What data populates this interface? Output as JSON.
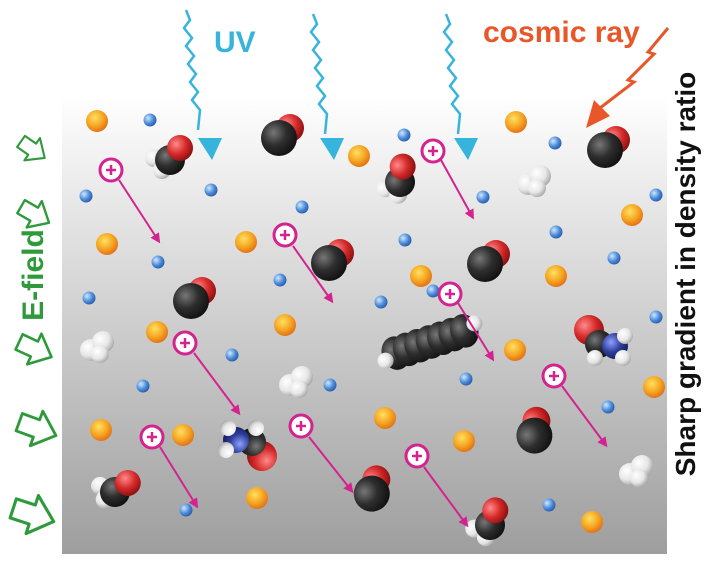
{
  "labels": {
    "uv": "UV",
    "cosmic_ray": "cosmic ray",
    "e_field": "E-field",
    "gradient": "Sharp gradient in density ratio",
    "ion_symbol": "+"
  },
  "colors": {
    "uv": "#36b4dc",
    "cosmic_ray": "#e8562a",
    "e_field": "#2f9a3c",
    "ion": "#d3238f",
    "carbon": "#2b2b2b",
    "oxygen": "#d62a2a",
    "hydrogen": "#f4f4f4",
    "nitrogen": "#2d3d9a",
    "electron": "#3a78c8",
    "dust": "#f0a020"
  },
  "icons": [
    "uv-photon-arrow",
    "cosmic-ray-arrow",
    "e-field-arrow",
    "ion-icon",
    "molecule-icon",
    "orange-grain-icon",
    "blue-particle-icon"
  ]
}
